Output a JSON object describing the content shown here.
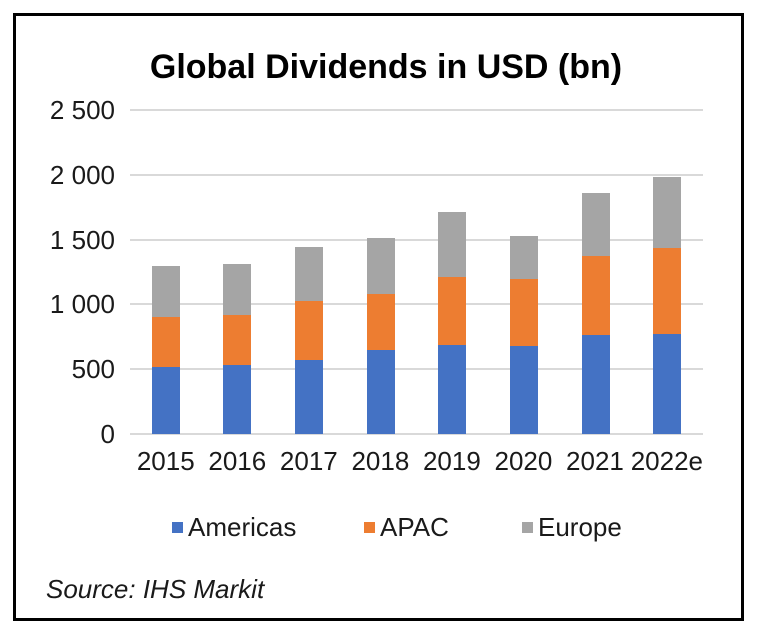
{
  "chart_data": {
    "type": "bar",
    "stacked": true,
    "title": "Global Dividends in USD (bn)",
    "categories": [
      "2015",
      "2016",
      "2017",
      "2018",
      "2019",
      "2020",
      "2021",
      "2022e"
    ],
    "series": [
      {
        "name": "Americas",
        "color": "#4472C4",
        "values": [
          520,
          535,
          570,
          645,
          685,
          680,
          765,
          775
        ]
      },
      {
        "name": "APAC",
        "color": "#ED7D31",
        "values": [
          385,
          385,
          460,
          435,
          525,
          515,
          610,
          660
        ]
      },
      {
        "name": "Europe",
        "color": "#A5A5A5",
        "values": [
          390,
          390,
          410,
          435,
          505,
          335,
          485,
          545
        ]
      }
    ],
    "xlabel": "",
    "ylabel": "",
    "ylim": [
      0,
      2500
    ],
    "yticks": [
      0,
      500,
      1000,
      1500,
      2000,
      2500
    ],
    "ytick_labels": [
      "0",
      "500",
      "1 000",
      "1 500",
      "2 000",
      "2 500"
    ],
    "grid": true,
    "gridline_color": "#D9D9D9",
    "legend_position": "bottom",
    "legend": [
      "Americas",
      "APAC",
      "Europe"
    ],
    "source": "Source: IHS Markit"
  }
}
